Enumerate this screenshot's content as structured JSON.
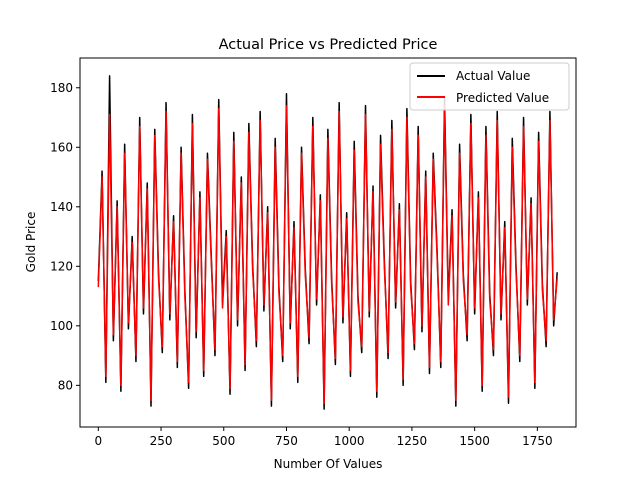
{
  "chart_data": {
    "type": "line",
    "title": "Actual Price vs Predicted Price",
    "xlabel": "Number Of Values",
    "ylabel": "Gold Price",
    "xlim": [
      -73,
      1904
    ],
    "ylim": [
      66,
      190
    ],
    "xticks": [
      0,
      250,
      500,
      750,
      1000,
      1250,
      1500,
      1750
    ],
    "yticks": [
      80,
      100,
      120,
      140,
      160,
      180
    ],
    "grid": false,
    "legend_position": "top-right",
    "n_points": 1830,
    "series": [
      {
        "name": "Actual Value",
        "color": "#000000",
        "x": [
          0,
          15,
          30,
          45,
          60,
          75,
          90,
          105,
          120,
          135,
          150,
          165,
          180,
          195,
          210,
          225,
          240,
          255,
          270,
          285,
          300,
          315,
          330,
          345,
          360,
          375,
          390,
          405,
          420,
          435,
          450,
          465,
          480,
          495,
          510,
          525,
          540,
          555,
          570,
          585,
          600,
          615,
          630,
          645,
          660,
          675,
          690,
          705,
          720,
          735,
          750,
          765,
          780,
          795,
          810,
          825,
          840,
          855,
          870,
          885,
          900,
          915,
          930,
          945,
          960,
          975,
          990,
          1005,
          1020,
          1035,
          1050,
          1065,
          1080,
          1095,
          1110,
          1125,
          1140,
          1155,
          1170,
          1185,
          1200,
          1215,
          1230,
          1245,
          1260,
          1275,
          1290,
          1305,
          1320,
          1335,
          1350,
          1365,
          1380,
          1395,
          1410,
          1425,
          1440,
          1455,
          1470,
          1485,
          1500,
          1515,
          1530,
          1545,
          1560,
          1575,
          1590,
          1605,
          1620,
          1635,
          1650,
          1665,
          1680,
          1695,
          1710,
          1725,
          1740,
          1755,
          1770,
          1785,
          1800,
          1815,
          1829
        ],
        "y": [
          115,
          152,
          81,
          184,
          95,
          142,
          78,
          161,
          99,
          130,
          88,
          170,
          104,
          148,
          73,
          166,
          118,
          91,
          175,
          102,
          137,
          86,
          160,
          112,
          79,
          171,
          96,
          145,
          83,
          158,
          124,
          90,
          176,
          108,
          132,
          77,
          165,
          100,
          150,
          85,
          168,
          121,
          93,
          172,
          105,
          140,
          73,
          163,
          113,
          88,
          178,
          99,
          135,
          81,
          160,
          119,
          94,
          170,
          107,
          144,
          72,
          166,
          116,
          87,
          175,
          101,
          138,
          83,
          162,
          110,
          91,
          174,
          103,
          147,
          76,
          164,
          122,
          89,
          169,
          106,
          141,
          80,
          173,
          115,
          92,
          167,
          98,
          152,
          84,
          158,
          126,
          86,
          177,
          109,
          139,
          73,
          161,
          117,
          95,
          171,
          104,
          145,
          78,
          167,
          111,
          90,
          172,
          102,
          135,
          74,
          163,
          120,
          88,
          170,
          107,
          143,
          79,
          165,
          114,
          93,
          172,
          100,
          118
        ]
      },
      {
        "name": "Predicted Value",
        "color": "#ff0000",
        "x": [
          0,
          15,
          30,
          45,
          60,
          75,
          90,
          105,
          120,
          135,
          150,
          165,
          180,
          195,
          210,
          225,
          240,
          255,
          270,
          285,
          300,
          315,
          330,
          345,
          360,
          375,
          390,
          405,
          420,
          435,
          450,
          465,
          480,
          495,
          510,
          525,
          540,
          555,
          570,
          585,
          600,
          615,
          630,
          645,
          660,
          675,
          690,
          705,
          720,
          735,
          750,
          765,
          780,
          795,
          810,
          825,
          840,
          855,
          870,
          885,
          900,
          915,
          930,
          945,
          960,
          975,
          990,
          1005,
          1020,
          1035,
          1050,
          1065,
          1080,
          1095,
          1110,
          1125,
          1140,
          1155,
          1170,
          1185,
          1200,
          1215,
          1230,
          1245,
          1260,
          1275,
          1290,
          1305,
          1320,
          1335,
          1350,
          1365,
          1380,
          1395,
          1410,
          1425,
          1440,
          1455,
          1470,
          1485,
          1500,
          1515,
          1530,
          1545,
          1560,
          1575,
          1590,
          1605,
          1620,
          1635,
          1650,
          1665,
          1680,
          1695,
          1710,
          1725,
          1740,
          1755,
          1770,
          1785,
          1800,
          1815,
          1829
        ],
        "y": [
          113,
          150,
          83,
          171,
          97,
          140,
          80,
          158,
          101,
          128,
          90,
          167,
          106,
          146,
          75,
          164,
          116,
          93,
          172,
          104,
          135,
          88,
          158,
          110,
          81,
          168,
          98,
          143,
          85,
          156,
          122,
          92,
          173,
          106,
          130,
          79,
          162,
          102,
          148,
          87,
          165,
          119,
          95,
          169,
          107,
          138,
          75,
          160,
          111,
          90,
          174,
          101,
          133,
          83,
          158,
          117,
          96,
          167,
          109,
          142,
          74,
          163,
          114,
          89,
          172,
          103,
          136,
          85,
          159,
          108,
          93,
          171,
          105,
          145,
          78,
          161,
          120,
          91,
          166,
          108,
          139,
          82,
          170,
          113,
          94,
          164,
          100,
          150,
          86,
          156,
          124,
          88,
          174,
          107,
          137,
          75,
          158,
          115,
          97,
          168,
          106,
          143,
          80,
          164,
          109,
          92,
          169,
          104,
          133,
          76,
          160,
          118,
          90,
          167,
          109,
          141,
          81,
          162,
          112,
          95,
          169,
          102,
          116
        ]
      }
    ]
  }
}
